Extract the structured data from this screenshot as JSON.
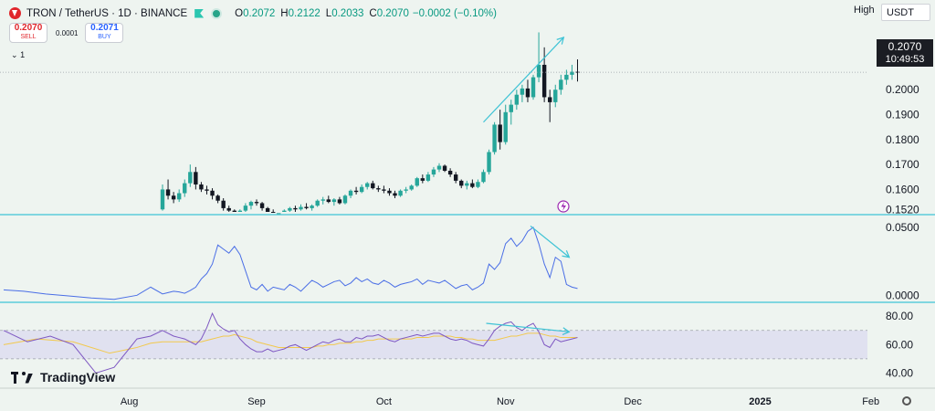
{
  "header": {
    "symbol": "TRON / TetherUS · 1D · BINANCE",
    "o_label": "O",
    "o": "0.2072",
    "h_label": "H",
    "h": "0.2122",
    "l_label": "L",
    "l": "0.2033",
    "c_label": "C",
    "c": "0.2070",
    "change": "−0.0002 (−0.10%)"
  },
  "trade": {
    "sell_price": "0.2070",
    "sell_label": "SELL",
    "spread": "0.0001",
    "buy_price": "0.2071",
    "buy_label": "BUY"
  },
  "collapse_label": "1",
  "scale_mode": "High",
  "currency": "USDT",
  "last_price": {
    "value": "0.2070",
    "countdown": "10:49:53"
  },
  "branding": "TradingView",
  "icons": [
    "tron-logo-icon",
    "flag-icon",
    "live-dot-icon",
    "chevron-down-icon",
    "lightning-icon",
    "tradingview-logo-icon",
    "gear-icon"
  ],
  "colors": {
    "up": "#26a69a",
    "down": "#131722",
    "macd_line": "#4a6ee6",
    "rsi_line": "#7e57c2",
    "rsi_ma": "#f2c94c",
    "rsi_band": "#dcdcf0",
    "trend_annotation": "#3ec3d5",
    "panel_divider": "#3ec3d5"
  },
  "chart_data": [
    {
      "type": "candlestick",
      "series": [
        {
          "name": "TRON / TetherUS · 1D · BINANCE",
          "values": [
            [
              0.152,
              0.162,
              0.1515,
              0.16
            ],
            [
              0.16,
              0.164,
              0.156,
              0.1575
            ],
            [
              0.1575,
              0.159,
              0.1545,
              0.156
            ],
            [
              0.156,
              0.16,
              0.155,
              0.1585
            ],
            [
              0.1585,
              0.164,
              0.157,
              0.1625
            ],
            [
              0.1625,
              0.17,
              0.161,
              0.167
            ],
            [
              0.167,
              0.169,
              0.16,
              0.162
            ],
            [
              0.162,
              0.163,
              0.159,
              0.16
            ],
            [
              0.16,
              0.1615,
              0.158,
              0.1595
            ],
            [
              0.1595,
              0.1605,
              0.156,
              0.1575
            ],
            [
              0.1575,
              0.158,
              0.1545,
              0.1555
            ],
            [
              0.1555,
              0.1565,
              0.1515,
              0.1525
            ],
            [
              0.1525,
              0.1535,
              0.1505,
              0.1515
            ],
            [
              0.1515,
              0.152,
              0.1495,
              0.1505
            ],
            [
              0.1505,
              0.152,
              0.149,
              0.1515
            ],
            [
              0.1515,
              0.1545,
              0.1505,
              0.1535
            ],
            [
              0.1535,
              0.1555,
              0.152,
              0.155
            ],
            [
              0.155,
              0.156,
              0.1535,
              0.1545
            ],
            [
              0.1545,
              0.155,
              0.1515,
              0.1525
            ],
            [
              0.1525,
              0.153,
              0.1505,
              0.151
            ],
            [
              0.151,
              0.152,
              0.1495,
              0.15
            ],
            [
              0.15,
              0.151,
              0.149,
              0.1505
            ],
            [
              0.1505,
              0.152,
              0.1498,
              0.1515
            ],
            [
              0.1515,
              0.153,
              0.1505,
              0.1525
            ],
            [
              0.1525,
              0.1535,
              0.151,
              0.152
            ],
            [
              0.152,
              0.154,
              0.1515,
              0.153
            ],
            [
              0.153,
              0.1545,
              0.152,
              0.1525
            ],
            [
              0.1525,
              0.154,
              0.1515,
              0.1535
            ],
            [
              0.1535,
              0.156,
              0.153,
              0.1555
            ],
            [
              0.1555,
              0.157,
              0.154,
              0.156
            ],
            [
              0.156,
              0.1575,
              0.1545,
              0.155
            ],
            [
              0.155,
              0.1565,
              0.1535,
              0.156
            ],
            [
              0.156,
              0.157,
              0.154,
              0.1545
            ],
            [
              0.1545,
              0.158,
              0.154,
              0.1575
            ],
            [
              0.1575,
              0.16,
              0.1565,
              0.1595
            ],
            [
              0.1595,
              0.161,
              0.158,
              0.159
            ],
            [
              0.159,
              0.162,
              0.1585,
              0.161
            ],
            [
              0.161,
              0.163,
              0.16,
              0.1625
            ],
            [
              0.1625,
              0.1635,
              0.16,
              0.1605
            ],
            [
              0.1605,
              0.1615,
              0.159,
              0.16
            ],
            [
              0.16,
              0.1615,
              0.1585,
              0.1595
            ],
            [
              0.1595,
              0.1605,
              0.1575,
              0.1585
            ],
            [
              0.1585,
              0.1595,
              0.1565,
              0.1575
            ],
            [
              0.1575,
              0.16,
              0.157,
              0.1595
            ],
            [
              0.1595,
              0.161,
              0.1585,
              0.16
            ],
            [
              0.16,
              0.162,
              0.1595,
              0.1615
            ],
            [
              0.1615,
              0.165,
              0.161,
              0.1645
            ],
            [
              0.1645,
              0.166,
              0.1625,
              0.1635
            ],
            [
              0.1635,
              0.167,
              0.163,
              0.166
            ],
            [
              0.166,
              0.169,
              0.165,
              0.168
            ],
            [
              0.168,
              0.1705,
              0.167,
              0.1695
            ],
            [
              0.1695,
              0.17,
              0.167,
              0.1675
            ],
            [
              0.1675,
              0.1685,
              0.165,
              0.166
            ],
            [
              0.166,
              0.167,
              0.1625,
              0.1635
            ],
            [
              0.1635,
              0.164,
              0.1605,
              0.1615
            ],
            [
              0.1615,
              0.1635,
              0.16,
              0.1625
            ],
            [
              0.1625,
              0.164,
              0.1605,
              0.161
            ],
            [
              0.161,
              0.164,
              0.1605,
              0.163
            ],
            [
              0.163,
              0.168,
              0.1625,
              0.167
            ],
            [
              0.167,
              0.176,
              0.166,
              0.175
            ],
            [
              0.175,
              0.187,
              0.174,
              0.186
            ],
            [
              0.186,
              0.192,
              0.176,
              0.179
            ],
            [
              0.179,
              0.194,
              0.178,
              0.191
            ],
            [
              0.191,
              0.196,
              0.186,
              0.194
            ],
            [
              0.194,
              0.2,
              0.192,
              0.198
            ],
            [
              0.198,
              0.202,
              0.195,
              0.2005
            ],
            [
              0.2005,
              0.204,
              0.195,
              0.197
            ],
            [
              0.197,
              0.206,
              0.196,
              0.205
            ],
            [
              0.205,
              0.223,
              0.203,
              0.21
            ],
            [
              0.21,
              0.217,
              0.195,
              0.197
            ],
            [
              0.197,
              0.2,
              0.187,
              0.195
            ],
            [
              0.195,
              0.202,
              0.193,
              0.2
            ],
            [
              0.2,
              0.206,
              0.198,
              0.204
            ],
            [
              0.204,
              0.208,
              0.202,
              0.206
            ],
            [
              0.206,
              0.21,
              0.204,
              0.2072
            ],
            [
              0.2072,
              0.2122,
              0.2033,
              0.207
            ]
          ]
        }
      ],
      "yticks": [
        0.152,
        0.16,
        0.17,
        0.18,
        0.19,
        0.2
      ],
      "ytick_labels": [
        "0.1520",
        "0.1600",
        "0.1700",
        "0.1800",
        "0.1900",
        "0.2000"
      ],
      "ylim": [
        0.151,
        0.225
      ],
      "last_value": 0.207,
      "annotation": "rising trendline arrow from 0.1870 to 0.2210"
    },
    {
      "type": "line",
      "series": [
        {
          "values": [
            0.001,
            0.002,
            0.003,
            0.0025,
            0.0015,
            0.0035,
            0.006,
            0.012,
            0.016,
            0.023,
            0.037,
            0.034,
            0.031,
            0.036,
            0.03,
            0.018,
            0.006,
            0.004,
            0.008,
            0.003,
            0.006,
            0.005,
            0.004,
            0.008,
            0.006,
            0.003,
            0.007,
            0.011,
            0.009,
            0.006,
            0.008,
            0.01,
            0.011,
            0.007,
            0.009,
            0.013,
            0.01,
            0.012,
            0.009,
            0.008,
            0.011,
            0.009,
            0.006,
            0.008,
            0.009,
            0.01,
            0.012,
            0.008,
            0.011,
            0.01,
            0.009,
            0.011,
            0.008,
            0.005,
            0.007,
            0.008,
            0.004,
            0.006,
            0.009,
            0.023,
            0.019,
            0.024,
            0.038,
            0.042,
            0.036,
            0.04,
            0.047,
            0.05,
            0.038,
            0.023,
            0.013,
            0.028,
            0.025,
            0.008,
            0.006,
            0.005
          ]
        }
      ],
      "yticks": [
        0.0,
        0.05
      ],
      "ytick_labels": [
        "0.0000",
        "0.0500"
      ],
      "ylim": [
        -0.0045,
        0.056
      ],
      "annotation": "falling trendline arrow from 0.0510 to 0.0280"
    },
    {
      "type": "line",
      "series": [
        {
          "values": [
            70,
            68,
            66,
            65,
            64,
            62,
            60,
            64,
            72,
            82,
            74,
            71,
            69,
            70,
            64,
            60,
            57,
            55,
            55,
            57,
            55,
            56,
            57,
            59,
            60,
            58,
            56,
            58,
            60,
            62,
            61,
            63,
            64,
            62,
            62,
            65,
            64,
            66,
            66,
            67,
            65,
            63,
            62,
            64,
            65,
            66,
            67,
            66,
            67,
            68,
            68,
            66,
            64,
            63,
            64,
            63,
            61,
            60,
            59,
            64,
            70,
            73,
            75,
            76,
            72,
            70,
            73,
            75,
            69,
            60,
            58,
            64,
            62,
            63,
            64,
            65
          ]
        },
        {
          "values": [
            62,
            62,
            62,
            62,
            62,
            62,
            62,
            62,
            63,
            64,
            65,
            66,
            66,
            67,
            66,
            65,
            64,
            62,
            61,
            60,
            59,
            58,
            58,
            58,
            58,
            58,
            58,
            58,
            59,
            59,
            60,
            60,
            61,
            61,
            61,
            62,
            62,
            63,
            63,
            64,
            64,
            64,
            64,
            64,
            64,
            64,
            65,
            65,
            65,
            66,
            66,
            66,
            66,
            65,
            65,
            64,
            64,
            63,
            63,
            63,
            63,
            64,
            65,
            66,
            66,
            67,
            68,
            68,
            68,
            67,
            66,
            66,
            65,
            65,
            65,
            65
          ]
        }
      ],
      "yticks": [
        40,
        60,
        80
      ],
      "ytick_labels": [
        "40.00",
        "60.00",
        "80.00"
      ],
      "ylim": [
        30,
        84
      ],
      "bands": [
        50,
        70
      ],
      "annotation": "nearly flat trendline arrow from 75 to 69"
    }
  ],
  "xaxis": {
    "labels": [
      "Aug",
      "Sep",
      "Oct",
      "Nov",
      "Dec",
      "2025",
      "Feb"
    ],
    "positions": [
      -6,
      17,
      40,
      62,
      85,
      108,
      128
    ]
  }
}
